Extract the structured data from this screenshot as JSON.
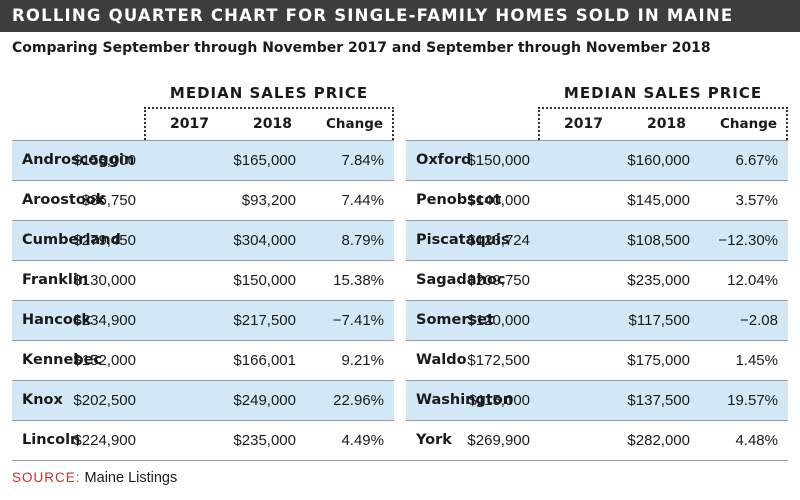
{
  "title": "ROLLING QUARTER CHART FOR SINGLE-FAMILY HOMES SOLD IN MAINE",
  "subtitle": "Comparing September through November 2017 and September through November 2018",
  "group_label": "MEDIAN SALES PRICE",
  "columns": {
    "y2017": "2017",
    "y2018": "2018",
    "change": "Change"
  },
  "left": [
    {
      "county": "Androscoggin",
      "y2017": "$153,000",
      "y2018": "$165,000",
      "change": "7.84%"
    },
    {
      "county": "Aroostook",
      "y2017": "$86,750",
      "y2018": "$93,200",
      "change": "7.44%"
    },
    {
      "county": "Cumberland",
      "y2017": "$279,450",
      "y2018": "$304,000",
      "change": "8.79%"
    },
    {
      "county": "Franklin",
      "y2017": "$130,000",
      "y2018": "$150,000",
      "change": "15.38%"
    },
    {
      "county": "Hancock",
      "y2017": "$234,900",
      "y2018": "$217,500",
      "change": "−7.41%"
    },
    {
      "county": "Kennebec",
      "y2017": "$152,000",
      "y2018": "$166,001",
      "change": "9.21%"
    },
    {
      "county": "Knox",
      "y2017": "$202,500",
      "y2018": "$249,000",
      "change": "22.96%"
    },
    {
      "county": "Lincoln",
      "y2017": "$224,900",
      "y2018": "$235,000",
      "change": "4.49%"
    }
  ],
  "right": [
    {
      "county": "Oxford",
      "y2017": "$150,000",
      "y2018": "$160,000",
      "change": "6.67%"
    },
    {
      "county": "Penobscot",
      "y2017": "$140,000",
      "y2018": "$145,000",
      "change": "3.57%"
    },
    {
      "county": "Piscataquis",
      "y2017": "$123,724",
      "y2018": "$108,500",
      "change": "−12.30%"
    },
    {
      "county": "Sagadahoc",
      "y2017": "$209,750",
      "y2018": "$235,000",
      "change": "12.04%"
    },
    {
      "county": "Somerset",
      "y2017": "$120,000",
      "y2018": "$117,500",
      "change": "−2.08"
    },
    {
      "county": "Waldo",
      "y2017": "$172,500",
      "y2018": "$175,000",
      "change": "1.45%"
    },
    {
      "county": "Washington",
      "y2017": "$115,000",
      "y2018": "$137,500",
      "change": "19.57%"
    },
    {
      "county": "York",
      "y2017": "$269,900",
      "y2018": "$282,000",
      "change": "4.48%"
    }
  ],
  "source": {
    "label": "SOURCE:",
    "text": "Maine Listings"
  },
  "colors": {
    "title_bg": "#3d3d3d",
    "row_shade": "#d2e8f6",
    "source_label": "#c0392b"
  }
}
